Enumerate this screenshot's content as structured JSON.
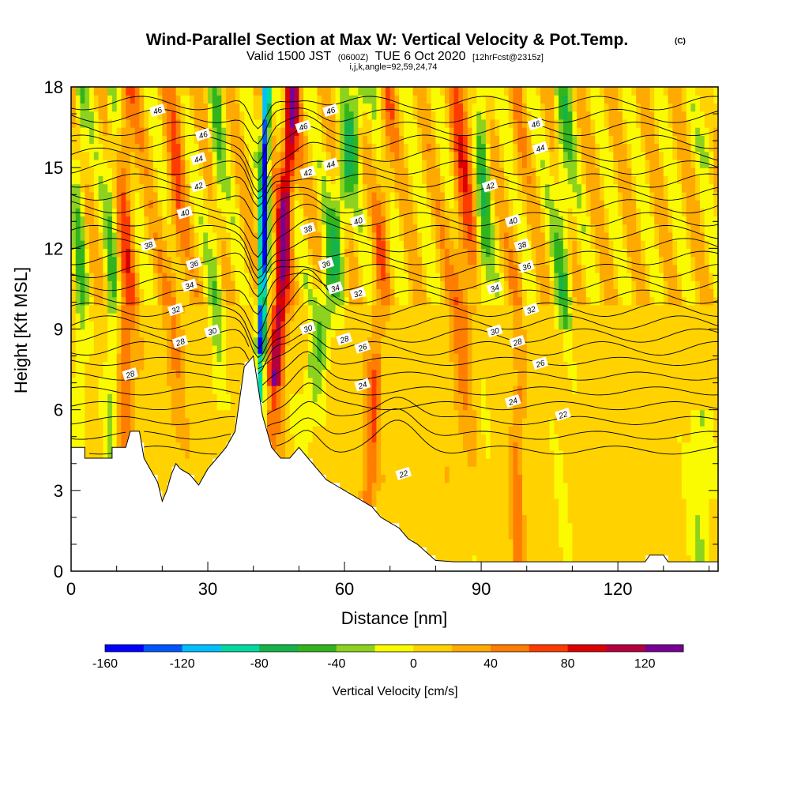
{
  "chart_data": {
    "type": "heatmap",
    "title": "Wind-Parallel Section at Max W: Vertical Velocity & Pot.Temp.",
    "title_mark": "(C)",
    "subtitle_parts": [
      "Valid 1500 JST",
      "(0600Z)",
      "TUE 6 Oct 2020",
      "[12hrFcst@2315z]"
    ],
    "subtitle2": "i,j,k,angle=92,59,24,74",
    "xlabel": "Distance [nm]",
    "ylabel": "Height [Kft MSL]",
    "xlim": [
      0,
      142
    ],
    "ylim": [
      0,
      18
    ],
    "x_ticks": [
      0,
      30,
      60,
      90,
      120
    ],
    "y_ticks": [
      0,
      3,
      6,
      9,
      12,
      15,
      18
    ],
    "colorbar": {
      "title": "Vertical Velocity [cm/s]",
      "range": [
        -160,
        140
      ],
      "step": 20,
      "ticks": [
        -160,
        -120,
        -80,
        -40,
        0,
        40,
        80,
        120
      ],
      "colors": [
        "#0000ff",
        "#0055ff",
        "#00bfff",
        "#00d9a0",
        "#14b44a",
        "#32b41e",
        "#8cd21e",
        "#fafa00",
        "#ffd200",
        "#ffaa00",
        "#ff7d00",
        "#ff3c00",
        "#dc0000",
        "#b4003c",
        "#780096"
      ]
    },
    "terrain": [
      [
        0,
        4.6
      ],
      [
        3,
        4.6
      ],
      [
        3,
        4.2
      ],
      [
        9,
        4.2
      ],
      [
        9,
        4.6
      ],
      [
        12,
        4.6
      ],
      [
        13,
        5.2
      ],
      [
        15,
        5.2
      ],
      [
        16,
        4.2
      ],
      [
        18,
        3.6
      ],
      [
        19,
        3.3
      ],
      [
        20,
        2.6
      ],
      [
        21,
        3.0
      ],
      [
        22,
        3.6
      ],
      [
        23,
        4.0
      ],
      [
        24,
        3.8
      ],
      [
        26,
        3.6
      ],
      [
        28,
        3.2
      ],
      [
        30,
        3.8
      ],
      [
        32,
        4.2
      ],
      [
        34,
        4.6
      ],
      [
        36,
        5.2
      ],
      [
        38,
        7.6
      ],
      [
        40,
        8.0
      ],
      [
        42,
        5.8
      ],
      [
        44,
        4.6
      ],
      [
        46,
        4.2
      ],
      [
        48,
        4.2
      ],
      [
        50,
        4.6
      ],
      [
        52,
        4.2
      ],
      [
        54,
        3.8
      ],
      [
        56,
        3.4
      ],
      [
        58,
        3.2
      ],
      [
        60,
        3.0
      ],
      [
        62,
        2.8
      ],
      [
        64,
        2.6
      ],
      [
        66,
        2.4
      ],
      [
        68,
        2.0
      ],
      [
        70,
        1.8
      ],
      [
        72,
        1.6
      ],
      [
        74,
        1.2
      ],
      [
        76,
        1.0
      ],
      [
        78,
        0.7
      ],
      [
        80,
        0.4
      ],
      [
        84,
        0.35
      ],
      [
        90,
        0.35
      ],
      [
        100,
        0.35
      ],
      [
        110,
        0.35
      ],
      [
        120,
        0.35
      ],
      [
        126,
        0.35
      ],
      [
        127,
        0.6
      ],
      [
        130,
        0.6
      ],
      [
        131,
        0.35
      ],
      [
        142,
        0.35
      ]
    ],
    "contour_labels": [
      {
        "text": "46",
        "x": 19,
        "y": 17.1
      },
      {
        "text": "46",
        "x": 57,
        "y": 17.1
      },
      {
        "text": "46",
        "x": 102,
        "y": 16.6
      },
      {
        "text": "46",
        "x": 29,
        "y": 16.2
      },
      {
        "text": "46",
        "x": 51,
        "y": 16.5
      },
      {
        "text": "44",
        "x": 28,
        "y": 15.3
      },
      {
        "text": "44",
        "x": 57,
        "y": 15.1
      },
      {
        "text": "44",
        "x": 103,
        "y": 15.7
      },
      {
        "text": "42",
        "x": 28,
        "y": 14.3
      },
      {
        "text": "42",
        "x": 52,
        "y": 14.8
      },
      {
        "text": "42",
        "x": 92,
        "y": 14.3
      },
      {
        "text": "40",
        "x": 25,
        "y": 13.3
      },
      {
        "text": "40",
        "x": 63,
        "y": 13.0
      },
      {
        "text": "40",
        "x": 97,
        "y": 13.0
      },
      {
        "text": "38",
        "x": 17,
        "y": 12.1
      },
      {
        "text": "38",
        "x": 52,
        "y": 12.7
      },
      {
        "text": "38",
        "x": 99,
        "y": 12.1
      },
      {
        "text": "36",
        "x": 27,
        "y": 11.4
      },
      {
        "text": "36",
        "x": 56,
        "y": 11.4
      },
      {
        "text": "36",
        "x": 100,
        "y": 11.3
      },
      {
        "text": "34",
        "x": 26,
        "y": 10.6
      },
      {
        "text": "34",
        "x": 58,
        "y": 10.5
      },
      {
        "text": "34",
        "x": 93,
        "y": 10.5
      },
      {
        "text": "32",
        "x": 23,
        "y": 9.7
      },
      {
        "text": "32",
        "x": 63,
        "y": 10.3
      },
      {
        "text": "32",
        "x": 101,
        "y": 9.7
      },
      {
        "text": "30",
        "x": 31,
        "y": 8.9
      },
      {
        "text": "30",
        "x": 52,
        "y": 9.0
      },
      {
        "text": "30",
        "x": 93,
        "y": 8.9
      },
      {
        "text": "28",
        "x": 24,
        "y": 8.5
      },
      {
        "text": "28",
        "x": 60,
        "y": 8.6
      },
      {
        "text": "28",
        "x": 98,
        "y": 8.5
      },
      {
        "text": "28",
        "x": 13,
        "y": 7.3
      },
      {
        "text": "26",
        "x": 64,
        "y": 8.3
      },
      {
        "text": "26",
        "x": 103,
        "y": 7.7
      },
      {
        "text": "24",
        "x": 64,
        "y": 6.9
      },
      {
        "text": "24",
        "x": 97,
        "y": 6.3
      },
      {
        "text": "22",
        "x": 108,
        "y": 5.8
      },
      {
        "text": "22",
        "x": 73,
        "y": 3.6
      }
    ],
    "contour_levels": [
      22,
      23,
      24,
      25,
      26,
      27,
      28,
      29,
      30,
      31,
      32,
      33,
      34,
      35,
      36,
      37,
      38,
      39,
      40,
      41,
      42,
      43,
      44,
      45,
      46,
      47,
      48
    ]
  }
}
